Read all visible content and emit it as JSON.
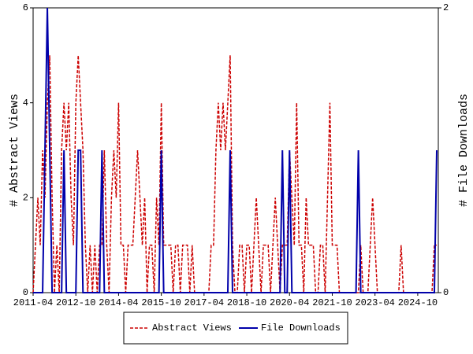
{
  "chart_data": {
    "type": "line",
    "y_label": "# Abstract Views",
    "y2_label": "# File Downloads",
    "categories": [
      "2011-04",
      null,
      null,
      null,
      null,
      null,
      null,
      null,
      null,
      null,
      null,
      null,
      null,
      null,
      null,
      null,
      null,
      null,
      "2012-10",
      null,
      null,
      null,
      null,
      null,
      null,
      null,
      null,
      null,
      null,
      null,
      null,
      null,
      null,
      null,
      null,
      null,
      "2014-04",
      null,
      null,
      null,
      null,
      null,
      null,
      null,
      null,
      null,
      null,
      null,
      null,
      null,
      null,
      null,
      null,
      null,
      "2015-10",
      null,
      null,
      null,
      null,
      null,
      null,
      null,
      null,
      null,
      null,
      null,
      null,
      null,
      null,
      null,
      null,
      null,
      "2017-04",
      null,
      null,
      null,
      null,
      null,
      null,
      null,
      null,
      null,
      null,
      null,
      null,
      null,
      null,
      null,
      null,
      null,
      "2018-10",
      null,
      null,
      null,
      null,
      null,
      null,
      null,
      null,
      null,
      null,
      null,
      null,
      null,
      null,
      null,
      null,
      null,
      "2020-04",
      null,
      null,
      null,
      null,
      null,
      null,
      null,
      null,
      null,
      null,
      null,
      null,
      null,
      null,
      null,
      null,
      null,
      "2021-10",
      null,
      null,
      null,
      null,
      null,
      null,
      null,
      null,
      null,
      null,
      null,
      null,
      null,
      null,
      null,
      null,
      null,
      "2023-04",
      null,
      null,
      null,
      null,
      null,
      null,
      null,
      null,
      null,
      null,
      null,
      null,
      null,
      null,
      null,
      null,
      null,
      "2024-10",
      null,
      null,
      null,
      null,
      null,
      null,
      null,
      null
    ],
    "series": [
      {
        "name": "Abstract Views",
        "color": "#cc0000",
        "dashed": true,
        "values": [
          0,
          1,
          2,
          1,
          3,
          2,
          4,
          5,
          2,
          0,
          1,
          0,
          3,
          4,
          3,
          4,
          2,
          1,
          4,
          5,
          4,
          3,
          1,
          0,
          1,
          0,
          1,
          0,
          1,
          1,
          3,
          1,
          0,
          2,
          3,
          2,
          4,
          1,
          1,
          0,
          1,
          1,
          1,
          2,
          3,
          2,
          1,
          2,
          0,
          1,
          1,
          0,
          2,
          1,
          4,
          1,
          1,
          1,
          1,
          0,
          1,
          1,
          0,
          1,
          1,
          1,
          0,
          1,
          0,
          0,
          0,
          0,
          0,
          0,
          0,
          1,
          1,
          3,
          4,
          3,
          4,
          3,
          4,
          5,
          1,
          0,
          0,
          1,
          1,
          0,
          1,
          1,
          0,
          1,
          2,
          1,
          0,
          1,
          1,
          1,
          0,
          1,
          2,
          1,
          0,
          1,
          1,
          1,
          3,
          2,
          1,
          4,
          1,
          1,
          0,
          2,
          1,
          1,
          1,
          0,
          0,
          1,
          1,
          0,
          2,
          4,
          1,
          1,
          1,
          0,
          0,
          0,
          0,
          0,
          0,
          0,
          0,
          0,
          1,
          0,
          0,
          0,
          1,
          2,
          1,
          0,
          0,
          0,
          0,
          0,
          0,
          0,
          0,
          0,
          0,
          1,
          0,
          0,
          0,
          0,
          0,
          0,
          0,
          0,
          0,
          0,
          0,
          0,
          0,
          1,
          1
        ]
      },
      {
        "name": "File Downloads",
        "color": "#0000aa",
        "dashed": false,
        "axis": "y2",
        "values": [
          0,
          0,
          0,
          0,
          0,
          1,
          2,
          1,
          0,
          0,
          0,
          0,
          0,
          1,
          0,
          0,
          0,
          0,
          0,
          1,
          1,
          0,
          0,
          0,
          0,
          0,
          0,
          0,
          0,
          1,
          0,
          0,
          0,
          0,
          0,
          0,
          0,
          0,
          0,
          0,
          0,
          0,
          0,
          0,
          0,
          0,
          0,
          0,
          0,
          0,
          0,
          0,
          0,
          0,
          1,
          0,
          0,
          0,
          0,
          0,
          0,
          0,
          0,
          0,
          0,
          0,
          0,
          0,
          0,
          0,
          0,
          0,
          0,
          0,
          0,
          0,
          0,
          0,
          0,
          0,
          0,
          0,
          0,
          1,
          0,
          0,
          0,
          0,
          0,
          0,
          0,
          0,
          0,
          0,
          0,
          0,
          0,
          0,
          0,
          0,
          0,
          0,
          0,
          0,
          0,
          1,
          0,
          0,
          1,
          0,
          0,
          0,
          0,
          0,
          0,
          0,
          0,
          0,
          0,
          0,
          0,
          0,
          0,
          0,
          0,
          0,
          0,
          0,
          0,
          0,
          0,
          0,
          0,
          0,
          0,
          0,
          0,
          1,
          0,
          0,
          0,
          0,
          0,
          0,
          0,
          0,
          0,
          0,
          0,
          0,
          0,
          0,
          0,
          0,
          0,
          0,
          0,
          0,
          0,
          0,
          0,
          0,
          0,
          0,
          0,
          0,
          0,
          0,
          0,
          0,
          1
        ]
      }
    ],
    "ylim": [
      0,
      6
    ],
    "yticks": [
      0,
      2,
      4,
      6
    ],
    "y2lim": [
      0,
      2
    ],
    "y2ticks": [
      0,
      2
    ],
    "legend": "bottom"
  }
}
